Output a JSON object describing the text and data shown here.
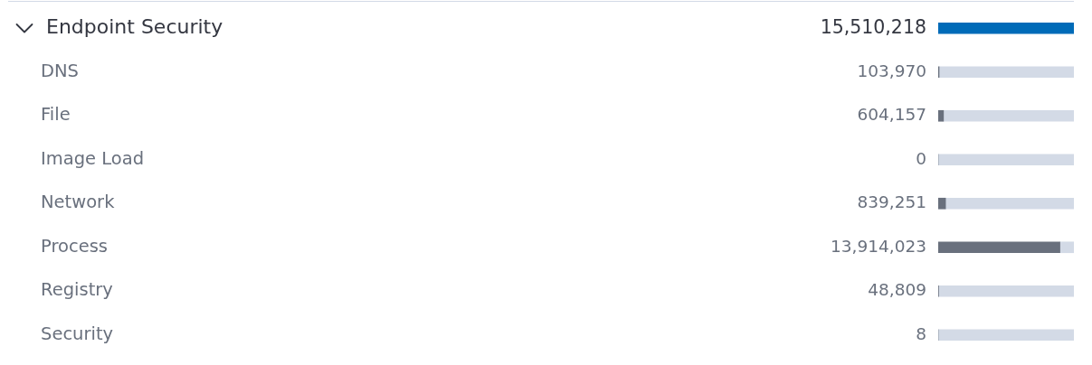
{
  "chart_data": {
    "type": "bar",
    "orientation": "horizontal",
    "stacked": true,
    "categories": [
      "Endpoint Security",
      "DNS",
      "File",
      "Image Load",
      "Network",
      "Process",
      "Registry",
      "Security"
    ],
    "series": [
      {
        "values": [
          15510218,
          103970,
          604157,
          0,
          839251,
          13914023,
          48809,
          8
        ],
        "colors": [
          "#006bb8",
          "#69707d",
          "#69707d",
          "#69707d",
          "#69707d",
          "#69707d",
          "#69707d",
          "#69707d"
        ],
        "value_labels": [
          "15,510,218",
          "103,970",
          "604,157",
          "0",
          "839,251",
          "13,914,023",
          "48,809",
          "8"
        ]
      },
      {
        "values": [
          0,
          15406248,
          14906061,
          15510218,
          14670967,
          1596195,
          15461409,
          15510210
        ],
        "color": "#d3dae6"
      }
    ],
    "legend": false,
    "tick_labels": "y"
  }
}
